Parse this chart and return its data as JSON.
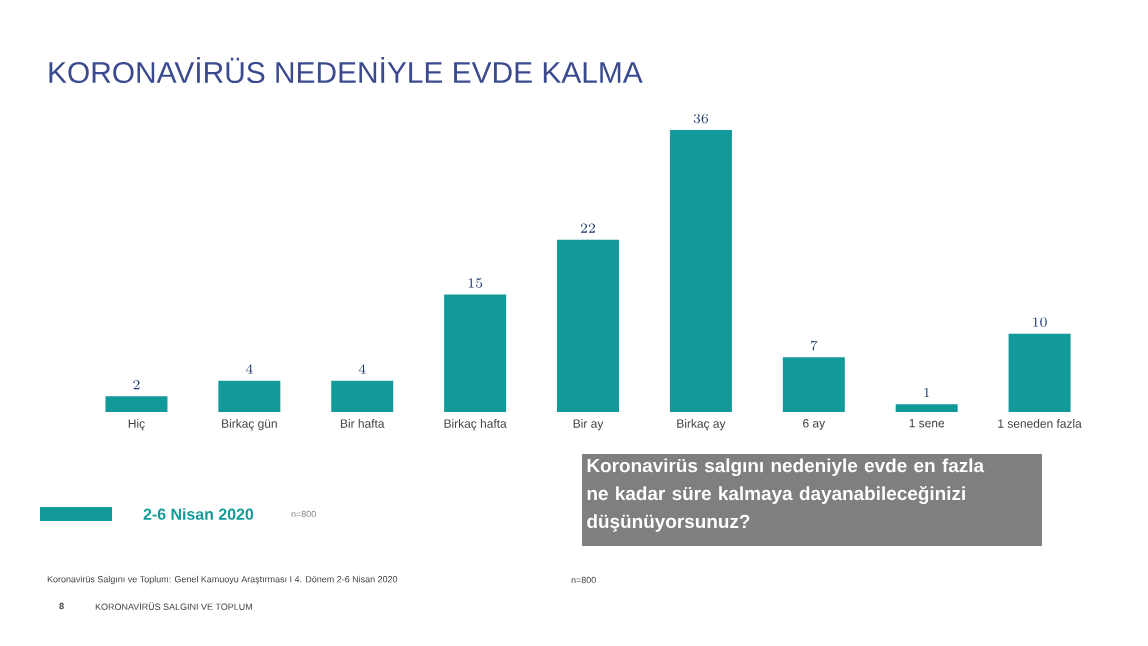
{
  "chart_data": {
    "type": "bar",
    "title": "KORONAVİRÜS NEDENİYLE EVDE KALMA",
    "categories": [
      "Hiç",
      "Birkaç gün",
      "Bir hafta",
      "Birkaç hafta",
      "Bir ay",
      "Birkaç ay",
      "6 ay",
      "1 sene",
      "1 seneden fazla"
    ],
    "series": [
      {
        "name": "2-6 Nisan 2020",
        "color": "#12999a",
        "values": [
          2,
          4,
          4,
          15,
          22,
          36,
          7,
          1,
          10
        ]
      }
    ],
    "data_labels": true,
    "legend": "bottom left",
    "annotations": [
      "n=800",
      "Koronavirüs salgını nedeniyle evde en fazla ne kadar süre kalmaya dayanabileceğinizi düşünüyorsunuz?",
      "Koronavirüs Salgını ve Toplum: Genel Kamuoyu Araştırması I 4. Dönem 2-6 Nisan 2020",
      "n=800",
      "8",
      "KORONAVİRÜS SALGINI VE TOPLUM"
    ]
  }
}
